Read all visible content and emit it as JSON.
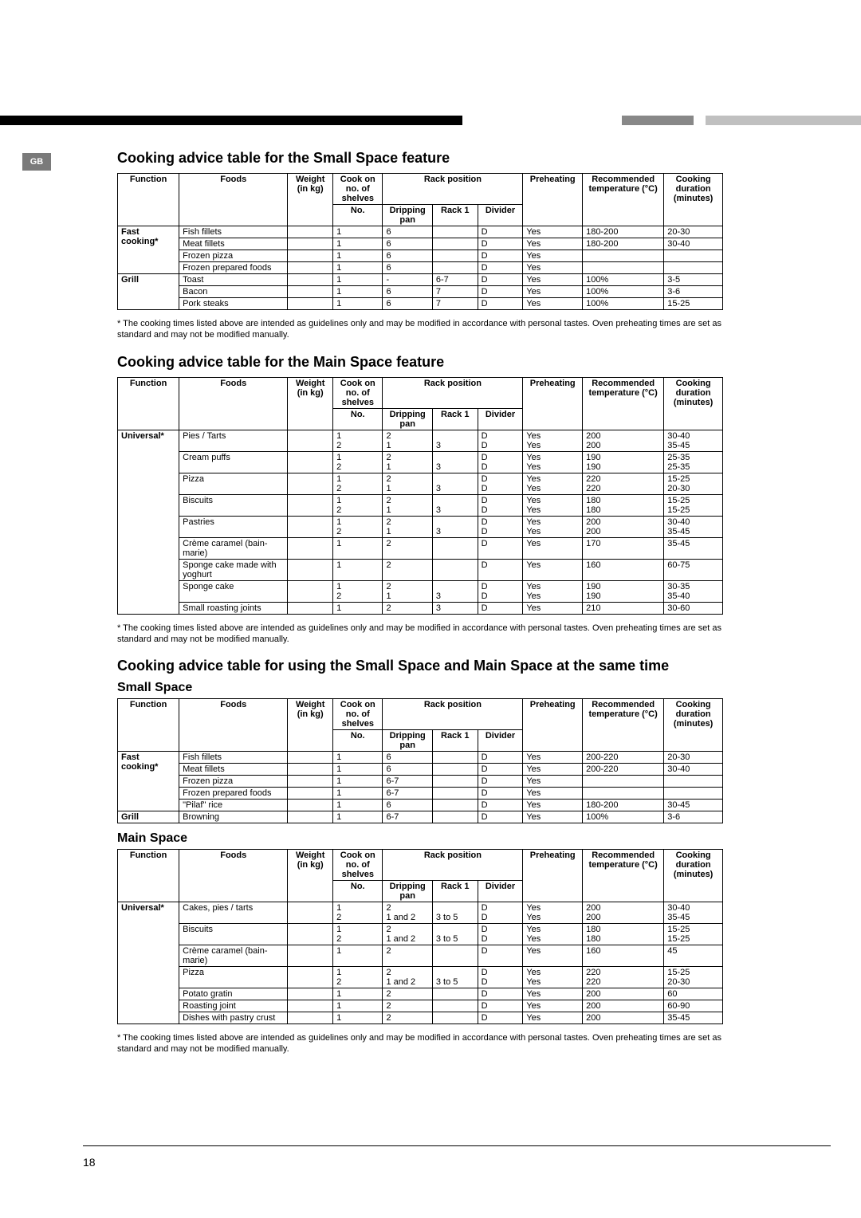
{
  "page": {
    "gb_label": "GB",
    "page_number": "18",
    "footnote": "* The cooking times listed above are intended as guidelines only and may be modified in accordance with personal tastes. Oven preheating times are set as standard and may not be modified manually.",
    "bar_colors": {
      "left": "#000000",
      "mid": "#888888",
      "right": "#c0c0c0"
    }
  },
  "headers": {
    "function": "Function",
    "foods": "Foods",
    "weight": "Weight (in kg)",
    "shelves": "Cook on no. of shelves",
    "rack_position": "Rack position",
    "no": "No.",
    "dripping": "Dripping pan",
    "rack1": "Rack 1",
    "divider": "Divider",
    "preheating": "Preheating",
    "temp": "Recommended temperature (°C)",
    "duration": "Cooking duration (minutes)"
  },
  "section1": {
    "title": "Cooking advice table for the Small Space feature",
    "groups": [
      {
        "function": "Fast cooking*",
        "rows": [
          {
            "food": "Fish fillets",
            "wt": "",
            "no": "1",
            "drip": "6",
            "rack": "",
            "div": "D",
            "pre": "Yes",
            "temp": "180-200",
            "dur": "20-30"
          },
          {
            "food": "Meat fillets",
            "wt": "",
            "no": "1",
            "drip": "6",
            "rack": "",
            "div": "D",
            "pre": "Yes",
            "temp": "180-200",
            "dur": "30-40"
          },
          {
            "food": "Frozen pizza",
            "wt": "",
            "no": "1",
            "drip": "6",
            "rack": "",
            "div": "D",
            "pre": "Yes",
            "temp": "",
            "dur": ""
          },
          {
            "food": "Frozen prepared foods",
            "wt": "",
            "no": "1",
            "drip": "6",
            "rack": "",
            "div": "D",
            "pre": "Yes",
            "temp": "",
            "dur": ""
          }
        ]
      },
      {
        "function": "Grill",
        "rows": [
          {
            "food": "Toast",
            "wt": "",
            "no": "1",
            "drip": "-",
            "rack": "6-7",
            "div": "D",
            "pre": "Yes",
            "temp": "100%",
            "dur": "3-5"
          },
          {
            "food": "Bacon",
            "wt": "",
            "no": "1",
            "drip": "6",
            "rack": "7",
            "div": "D",
            "pre": "Yes",
            "temp": "100%",
            "dur": "3-6"
          },
          {
            "food": "Pork steaks",
            "wt": "",
            "no": "1",
            "drip": "6",
            "rack": "7",
            "div": "D",
            "pre": "Yes",
            "temp": "100%",
            "dur": "15-25"
          }
        ]
      }
    ]
  },
  "section2": {
    "title": "Cooking advice table for the Main Space feature",
    "groups": [
      {
        "function": "Universal*",
        "rows": [
          {
            "food": "Pies / Tarts",
            "wt": "",
            "no": "1\n2",
            "drip": "2\n1",
            "rack": "\n3",
            "div": "D\nD",
            "pre": "Yes\nYes",
            "temp": "200\n200",
            "dur": "30-40\n35-45"
          },
          {
            "food": "Cream puffs",
            "wt": "",
            "no": "1\n2",
            "drip": "2\n1",
            "rack": "\n3",
            "div": "D\nD",
            "pre": "Yes\nYes",
            "temp": "190\n190",
            "dur": "25-35\n25-35"
          },
          {
            "food": "Pizza",
            "wt": "",
            "no": "1\n2",
            "drip": "2\n1",
            "rack": "\n3",
            "div": "D\nD",
            "pre": "Yes\nYes",
            "temp": "220\n220",
            "dur": "15-25\n20-30"
          },
          {
            "food": "Biscuits",
            "wt": "",
            "no": "1\n2",
            "drip": "2\n1",
            "rack": "\n3",
            "div": "D\nD",
            "pre": "Yes\nYes",
            "temp": "180\n180",
            "dur": "15-25\n15-25"
          },
          {
            "food": "Pastries",
            "wt": "",
            "no": "1\n2",
            "drip": "2\n1",
            "rack": "\n3",
            "div": "D\nD",
            "pre": "Yes\nYes",
            "temp": "200\n200",
            "dur": "30-40\n35-45"
          },
          {
            "food": "Crème caramel (bain-marie)",
            "wt": "",
            "no": "1",
            "drip": "2",
            "rack": "",
            "div": "D",
            "pre": "Yes",
            "temp": "170",
            "dur": "35-45"
          },
          {
            "food": "Sponge cake made with yoghurt",
            "wt": "",
            "no": "1",
            "drip": "2",
            "rack": "",
            "div": "D",
            "pre": "Yes",
            "temp": "160",
            "dur": "60-75"
          },
          {
            "food": "Sponge cake",
            "wt": "",
            "no": "1\n2",
            "drip": "2\n1",
            "rack": "\n3",
            "div": "D\nD",
            "pre": "Yes\nYes",
            "temp": "190\n190",
            "dur": "30-35\n35-40"
          },
          {
            "food": "Small roasting joints",
            "wt": "",
            "no": "1",
            "drip": "2",
            "rack": "3",
            "div": "D",
            "pre": "Yes",
            "temp": "210",
            "dur": "30-60"
          }
        ]
      }
    ]
  },
  "section3": {
    "title": "Cooking advice table for using the Small Space and Main Space at the same time",
    "sub_small": "Small Space",
    "sub_main": "Main Space",
    "small_groups": [
      {
        "function": "Fast cooking*",
        "rows": [
          {
            "food": "Fish fillets",
            "wt": "",
            "no": "1",
            "drip": "6",
            "rack": "",
            "div": "D",
            "pre": "Yes",
            "temp": "200-220",
            "dur": "20-30"
          },
          {
            "food": "Meat fillets",
            "wt": "",
            "no": "1",
            "drip": "6",
            "rack": "",
            "div": "D",
            "pre": "Yes",
            "temp": "200-220",
            "dur": "30-40"
          },
          {
            "food": "Frozen pizza",
            "wt": "",
            "no": "1",
            "drip": "6-7",
            "rack": "",
            "div": "D",
            "pre": "Yes",
            "temp": "",
            "dur": ""
          },
          {
            "food": "Frozen prepared foods",
            "wt": "",
            "no": "1",
            "drip": "6-7",
            "rack": "",
            "div": "D",
            "pre": "Yes",
            "temp": "",
            "dur": ""
          },
          {
            "food": "\"Pilaf\" rice",
            "wt": "",
            "no": "1",
            "drip": "6",
            "rack": "",
            "div": "D",
            "pre": "Yes",
            "temp": "180-200",
            "dur": "30-45"
          }
        ]
      },
      {
        "function": "Grill",
        "rows": [
          {
            "food": "Browning",
            "wt": "",
            "no": "1",
            "drip": "6-7",
            "rack": "",
            "div": "D",
            "pre": "Yes",
            "temp": "100%",
            "dur": "3-6"
          }
        ]
      }
    ],
    "main_groups": [
      {
        "function": "Universal*",
        "rows": [
          {
            "food": "Cakes, pies / tarts",
            "wt": "",
            "no": "1\n2",
            "drip": "2\n1 and 2",
            "rack": "\n3 to 5",
            "div": "D\nD",
            "pre": "Yes\nYes",
            "temp": "200\n200",
            "dur": "30-40\n35-45"
          },
          {
            "food": "Biscuits",
            "wt": "",
            "no": "1\n2",
            "drip": "2\n1 and 2",
            "rack": "\n3 to 5",
            "div": "D\nD",
            "pre": "Yes\nYes",
            "temp": "180\n180",
            "dur": "15-25\n15-25"
          },
          {
            "food": "Crème caramel (bain-marie)",
            "wt": "",
            "no": "1",
            "drip": "2",
            "rack": "",
            "div": "D",
            "pre": "Yes",
            "temp": "160",
            "dur": "45"
          },
          {
            "food": "Pizza",
            "wt": "",
            "no": "1\n2",
            "drip": "2\n1 and 2",
            "rack": "\n3 to 5",
            "div": "D\nD",
            "pre": "Yes\nYes",
            "temp": "220\n220",
            "dur": "15-25\n20-30"
          },
          {
            "food": "Potato gratin",
            "wt": "",
            "no": "1",
            "drip": "2",
            "rack": "",
            "div": "D",
            "pre": "Yes",
            "temp": "200",
            "dur": "60"
          },
          {
            "food": "Roasting joint",
            "wt": "",
            "no": "1",
            "drip": "2",
            "rack": "",
            "div": "D",
            "pre": "Yes",
            "temp": "200",
            "dur": "60-90"
          },
          {
            "food": "Dishes with pastry crust",
            "wt": "",
            "no": "1",
            "drip": "2",
            "rack": "",
            "div": "D",
            "pre": "Yes",
            "temp": "200",
            "dur": "35-45"
          }
        ]
      }
    ]
  }
}
